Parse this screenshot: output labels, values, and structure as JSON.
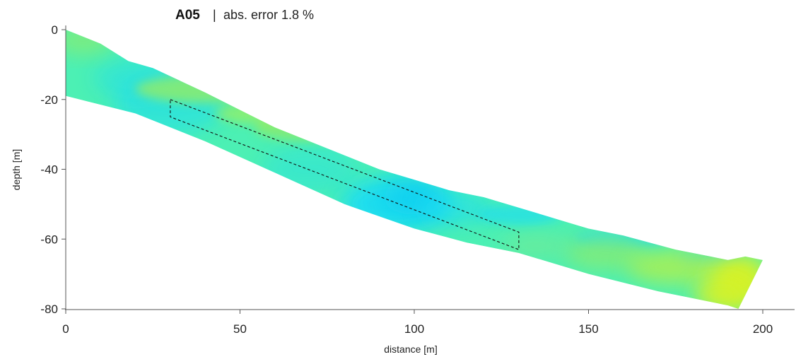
{
  "chart_data": {
    "type": "heatmap",
    "title": {
      "id": "A05",
      "separator": "|",
      "subtitle": "abs. error 1.8 %"
    },
    "xlabel": "distance [m]",
    "ylabel": "depth [m]",
    "xlim": [
      0,
      200
    ],
    "ylim": [
      -80,
      0
    ],
    "xticks": [
      0,
      50,
      100,
      150,
      200
    ],
    "yticks": [
      0,
      -20,
      -40,
      -60,
      -80
    ],
    "grid": false,
    "legend": "none",
    "section_top": [
      [
        0,
        0
      ],
      [
        10,
        -4
      ],
      [
        18,
        -9
      ],
      [
        25,
        -11
      ],
      [
        40,
        -18
      ],
      [
        60,
        -28
      ],
      [
        75,
        -34
      ],
      [
        90,
        -40
      ],
      [
        100,
        -43
      ],
      [
        110,
        -46
      ],
      [
        120,
        -48
      ],
      [
        140,
        -54
      ],
      [
        150,
        -57
      ],
      [
        160,
        -59
      ],
      [
        175,
        -63
      ],
      [
        185,
        -65
      ],
      [
        190,
        -66
      ],
      [
        195,
        -65
      ],
      [
        200,
        -66
      ]
    ],
    "section_bottom": [
      [
        0,
        -19
      ],
      [
        20,
        -24
      ],
      [
        40,
        -32
      ],
      [
        60,
        -41
      ],
      [
        80,
        -50
      ],
      [
        100,
        -57
      ],
      [
        115,
        -61
      ],
      [
        130,
        -64
      ],
      [
        150,
        -70
      ],
      [
        170,
        -75
      ],
      [
        190,
        -79
      ],
      [
        193,
        -80
      ],
      [
        200,
        -66
      ]
    ],
    "highlight_box": [
      [
        30,
        -20
      ],
      [
        130,
        -58
      ],
      [
        130,
        -63
      ],
      [
        30,
        -25
      ]
    ],
    "colors": {
      "base": "#4cf0b4",
      "cyan": "#1fdcf2",
      "green": "#8ceb6e",
      "yellow": "#d3f22a",
      "axis": "#555555"
    }
  }
}
